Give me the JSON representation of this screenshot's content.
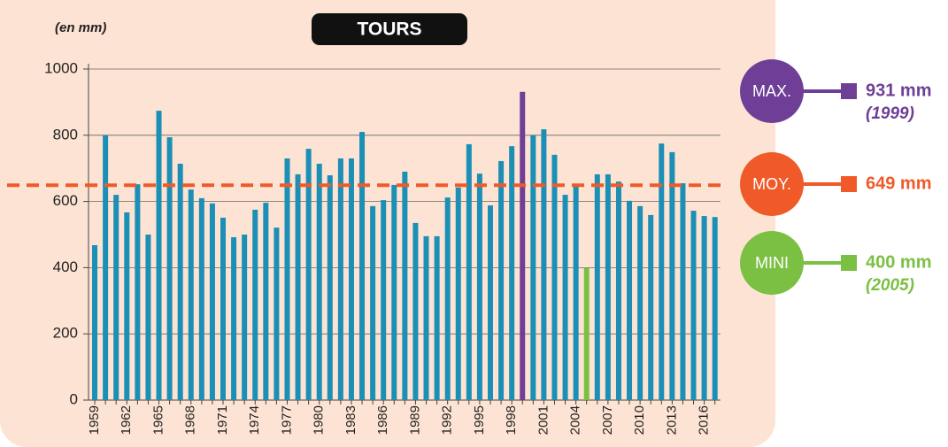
{
  "chart_data": {
    "type": "bar",
    "title": "TOURS",
    "unit_label": "(en mm)",
    "categories": [
      "1959",
      null,
      null,
      "1962",
      null,
      null,
      "1965",
      null,
      null,
      "1968",
      null,
      null,
      "1971",
      null,
      null,
      "1974",
      null,
      null,
      "1977",
      null,
      null,
      "1980",
      null,
      null,
      "1983",
      null,
      null,
      "1986",
      null,
      null,
      "1989",
      null,
      null,
      "1992",
      null,
      null,
      "1995",
      null,
      null,
      "1998",
      null,
      null,
      "2001",
      null,
      null,
      "2004",
      null,
      null,
      "2007",
      null,
      null,
      "2010",
      null,
      null,
      "2013",
      null,
      null,
      "2016",
      null
    ],
    "values": [
      468,
      800,
      620,
      567,
      652,
      500,
      874,
      794,
      714,
      636,
      610,
      594,
      551,
      492,
      500,
      575,
      596,
      521,
      730,
      682,
      759,
      714,
      679,
      730,
      730,
      810,
      586,
      604,
      650,
      690,
      535,
      495,
      495,
      612,
      642,
      773,
      684,
      588,
      722,
      767,
      931,
      800,
      818,
      741,
      620,
      647,
      400,
      682,
      682,
      660,
      602,
      586,
      559,
      775,
      749,
      655,
      572,
      556,
      553
    ],
    "color": "#1b8fb5",
    "ylim": [
      0,
      1000
    ],
    "yticks": [
      0,
      200,
      400,
      600,
      800,
      1000
    ],
    "grid": true,
    "highlights": [
      {
        "name": "MAX.",
        "value": 931,
        "label": "931 mm",
        "note": "(1999)",
        "color": "#6f3f98"
      },
      {
        "name": "MOY.",
        "value": 649,
        "label": "649 mm",
        "color": "#ef5a28",
        "line": "dashed"
      },
      {
        "name": "MINI",
        "value": 400,
        "label": "400 mm",
        "note": "(2005)",
        "color": "#7bc043"
      }
    ]
  }
}
